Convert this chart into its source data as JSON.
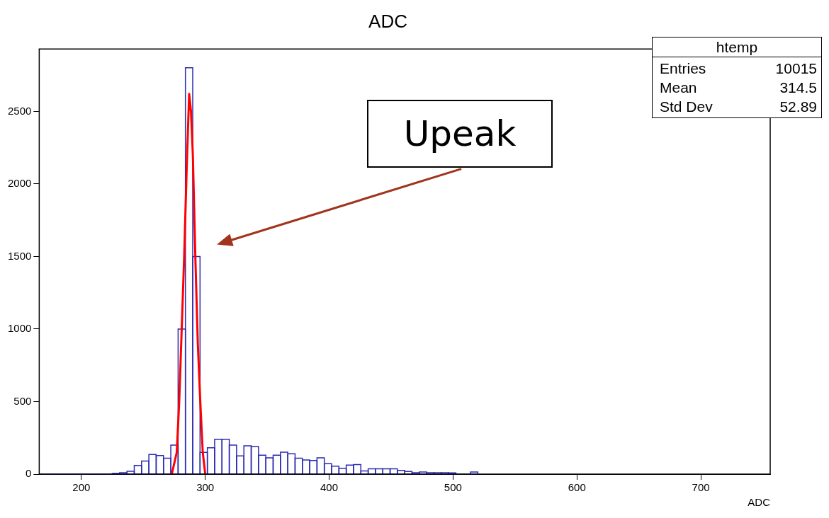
{
  "chart_data": {
    "type": "histogram",
    "title": "ADC",
    "xlabel": "ADC",
    "bins": [
      166,
      171.9,
      177.8,
      183.7,
      189.6,
      195.5,
      201.4,
      207.3,
      213.2,
      219.1,
      225,
      230.9,
      236.8,
      242.7,
      248.6,
      254.5,
      260.4,
      266.3,
      272.2,
      278.1,
      284,
      289.9,
      295.8,
      301.7,
      307.6,
      313.5,
      319.4,
      325.3,
      331.2,
      337.1,
      343,
      348.9,
      354.8,
      360.7,
      366.6,
      372.5,
      378.4,
      384.3,
      390.2,
      396.1,
      402,
      407.9,
      413.8,
      419.7,
      425.6,
      431.5,
      437.4,
      443.3,
      449.2,
      455.1,
      461,
      466.9,
      472.8,
      478.7,
      484.6,
      490.5,
      496.4,
      502.3,
      508.2,
      514.1,
      520
    ],
    "series": [
      {
        "color": "#2b2bb0",
        "values": [
          0,
          0,
          0,
          0,
          0,
          0,
          0,
          0,
          0,
          0,
          5,
          10,
          20,
          60,
          90,
          135,
          128,
          110,
          200,
          1000,
          2800,
          1500,
          150,
          182,
          240,
          240,
          200,
          125,
          195,
          190,
          130,
          112,
          131,
          151,
          140,
          110,
          97,
          94,
          112,
          72,
          55,
          40,
          62,
          66,
          22,
          36,
          36,
          36,
          36,
          25,
          18,
          10,
          15,
          10,
          10,
          10,
          8,
          0,
          0,
          15
        ]
      },
      {
        "type": "line",
        "color": "#ff0000",
        "x": [
          273,
          277,
          279,
          281,
          283,
          285,
          287,
          288.5,
          290,
          292,
          294,
          296,
          298,
          300
        ],
        "values": [
          0,
          150,
          500,
          1000,
          1500,
          2100,
          2620,
          2500,
          2200,
          1500,
          900,
          500,
          150,
          0
        ]
      }
    ],
    "xlim": [
      166,
      756
    ],
    "xticks": [
      200,
      300,
      400,
      500,
      600,
      700
    ],
    "ylim": [
      0,
      2930
    ],
    "yticks": [
      0,
      500,
      1000,
      1500,
      2000,
      2500
    ],
    "grid": false,
    "legend": false,
    "annotations": [
      "Upeak",
      "htemp",
      "Entries",
      "10015",
      "Mean",
      "314.5",
      "Std Dev",
      "52.89"
    ]
  }
}
